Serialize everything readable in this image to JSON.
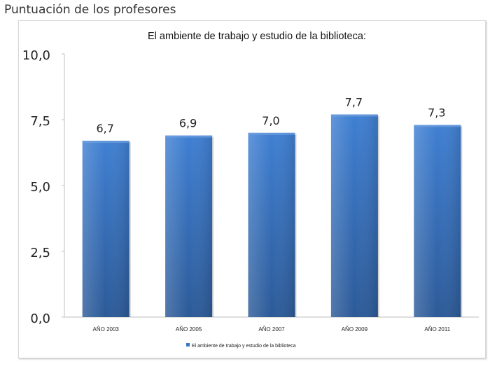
{
  "page": {
    "title": "Puntuación de los profesores"
  },
  "chart_data": {
    "type": "bar",
    "title": "El ambiente de trabajo y estudio de la biblioteca:",
    "categories": [
      "AÑO 2003",
      "AÑO 2005",
      "AÑO 2007",
      "AÑO 2009",
      "AÑO 2011"
    ],
    "series": [
      {
        "name": "El ambiente de trabajo y estudio de la biblioteca",
        "values": [
          6.7,
          6.9,
          7.0,
          7.7,
          7.3
        ],
        "value_labels": [
          "6,7",
          "6,9",
          "7,0",
          "7,7",
          "7,3"
        ],
        "color": "#3a76c6"
      }
    ],
    "xlabel": "",
    "ylabel": "",
    "ylim": [
      0,
      10
    ],
    "yticks": [
      0,
      2.5,
      5,
      7.5,
      10
    ],
    "ytick_labels": [
      "0,0",
      "2,5",
      "5,0",
      "7,5",
      "10,0"
    ],
    "grid": false,
    "legend": "bottom"
  }
}
